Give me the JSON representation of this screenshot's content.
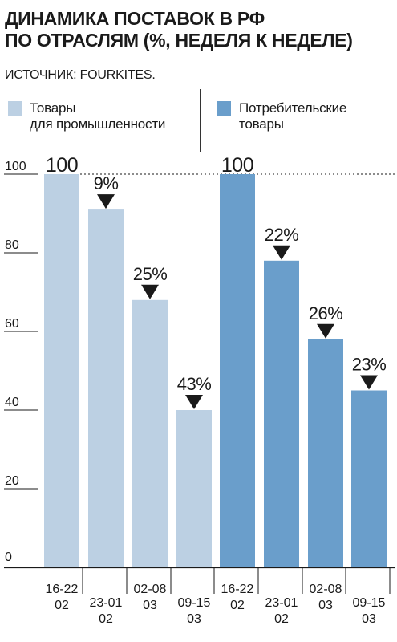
{
  "title": [
    "ДИНАМИКА ПОСТАВОК В РФ",
    "ПО ОТРАСЛЯМ (%, НЕДЕЛЯ К НЕДЕЛЕ)"
  ],
  "source": "ИСТОЧНИК: FOURKITES.",
  "colors": {
    "light": "#bcd0e3",
    "dark": "#6a9ecb",
    "text": "#1a1a1a"
  },
  "chart_data": {
    "type": "bar",
    "title": "ДИНАМИКА ПОСТАВОК В РФ ПО ОТРАСЛЯМ (%, НЕДЕЛЯ К НЕДЕЛЕ)",
    "ylim": [
      0,
      100
    ],
    "yticks": [
      "0",
      "20",
      "40",
      "60",
      "80",
      "100"
    ],
    "categories": [
      "16-22\n02",
      "23-01\n02",
      "02-08\n03",
      "09-15\n03"
    ],
    "legend_position": "top",
    "series": [
      {
        "name": "Товары\nдля промышленности",
        "color": "#bcd0e3",
        "values": [
          100,
          91,
          68,
          40
        ],
        "labels": [
          "100",
          "9%",
          "25%",
          "43%"
        ]
      },
      {
        "name": "Потребительские\nтовары",
        "color": "#6a9ecb",
        "values": [
          100,
          78,
          58,
          45
        ],
        "labels": [
          "100",
          "22%",
          "26%",
          "23%"
        ]
      }
    ]
  }
}
